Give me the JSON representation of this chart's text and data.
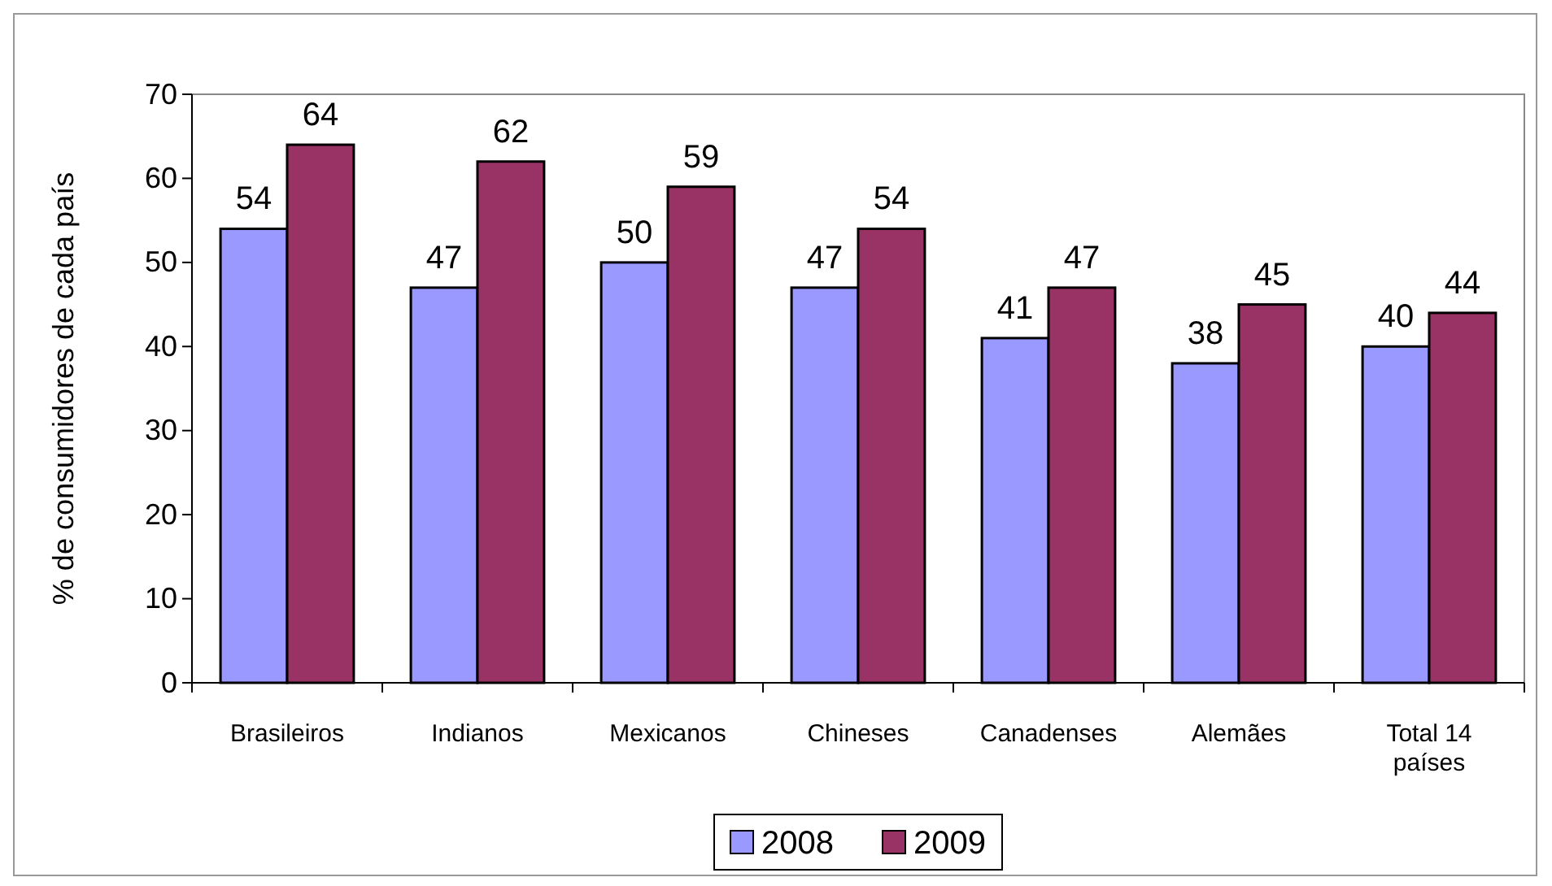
{
  "chart_data": {
    "type": "bar",
    "ylabel": "% de consumidores de cada país",
    "categories": [
      "Brasileiros",
      "Indianos",
      "Mexicanos",
      "Chineses",
      "Canadenses",
      "Alemães",
      "Total 14 países"
    ],
    "series": [
      {
        "name": "2008",
        "color": "#9999ff",
        "values": [
          54,
          47,
          50,
          47,
          41,
          38,
          40
        ]
      },
      {
        "name": "2009",
        "color": "#993366",
        "values": [
          64,
          62,
          59,
          54,
          47,
          45,
          44
        ]
      }
    ],
    "ylim": [
      0,
      70
    ],
    "yticks": [
      0,
      10,
      20,
      30,
      40,
      50,
      60,
      70
    ],
    "grid": false,
    "legend": "bottom",
    "data_labels": true
  }
}
